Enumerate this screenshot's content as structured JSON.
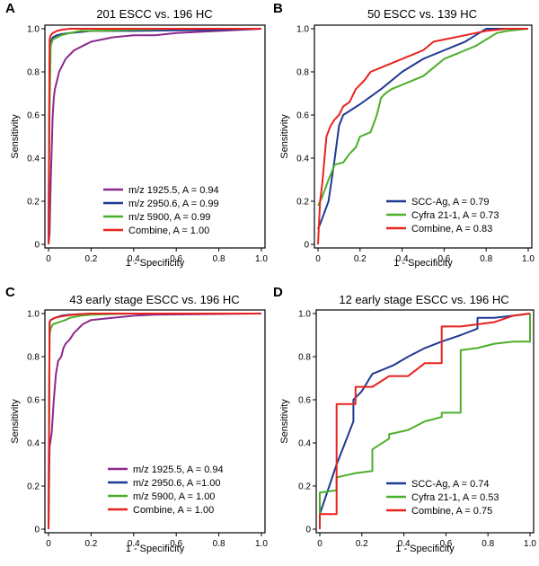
{
  "chart_data": [
    {
      "type": "line",
      "panel": "A",
      "title": "201 ESCC vs. 196 HC",
      "xlabel": "1 - Specificity",
      "ylabel": "Sensitivity",
      "xlim": [
        0,
        1
      ],
      "ylim": [
        0,
        1
      ],
      "xticks": [
        "0",
        "0.2",
        "0.4",
        "0.6",
        "0.8",
        "1.0"
      ],
      "yticks": [
        "0",
        "0.2",
        "0.4",
        "0.6",
        "0.8",
        "1.0"
      ],
      "legend_position": "bottom-right",
      "series": [
        {
          "name": "m/z 1925.5, A = 0.94",
          "color": "#8b2a8e",
          "x": [
            0,
            0.005,
            0.01,
            0.015,
            0.02,
            0.025,
            0.03,
            0.04,
            0.05,
            0.06,
            0.07,
            0.08,
            0.1,
            0.12,
            0.14,
            0.16,
            0.18,
            0.2,
            0.25,
            0.3,
            0.4,
            0.5,
            0.6,
            0.8,
            1.0
          ],
          "y": [
            0,
            0.05,
            0.28,
            0.45,
            0.6,
            0.68,
            0.72,
            0.76,
            0.8,
            0.82,
            0.84,
            0.86,
            0.88,
            0.9,
            0.91,
            0.92,
            0.93,
            0.94,
            0.95,
            0.96,
            0.97,
            0.97,
            0.98,
            0.99,
            1.0
          ]
        },
        {
          "name": "m/z 2950.6, A = 0.99",
          "color": "#1f3a93",
          "x": [
            0,
            0.005,
            0.01,
            0.02,
            0.04,
            0.06,
            0.1,
            0.15,
            0.2,
            0.4,
            0.6,
            0.8,
            1.0
          ],
          "y": [
            0,
            0.85,
            0.94,
            0.96,
            0.97,
            0.975,
            0.98,
            0.985,
            0.99,
            0.99,
            0.993,
            0.995,
            1.0
          ]
        },
        {
          "name": "m/z 5900, A = 0.99",
          "color": "#4caf2a",
          "x": [
            0,
            0.005,
            0.01,
            0.02,
            0.04,
            0.06,
            0.08,
            0.1,
            0.15,
            0.2,
            0.4,
            0.6,
            1.0
          ],
          "y": [
            0,
            0.62,
            0.92,
            0.95,
            0.96,
            0.97,
            0.975,
            0.98,
            0.99,
            0.99,
            0.995,
            1.0,
            1.0
          ]
        },
        {
          "name": "Combine, A = 1.00",
          "color": "#e8231f",
          "x": [
            0,
            0.005,
            0.01,
            0.015,
            0.02,
            0.04,
            0.06,
            0.1,
            0.2,
            0.4,
            0.6,
            1.0
          ],
          "y": [
            0,
            0.95,
            0.97,
            0.975,
            0.98,
            0.99,
            0.995,
            1.0,
            1.0,
            1.0,
            1.0,
            1.0
          ]
        }
      ]
    },
    {
      "type": "line",
      "panel": "B",
      "title": "50 ESCC vs. 139 HC",
      "xlabel": "1 - Specificity",
      "ylabel": "Sensitivity",
      "xlim": [
        0,
        1
      ],
      "ylim": [
        0,
        1
      ],
      "xticks": [
        "0",
        "0.2",
        "0.4",
        "0.6",
        "0.8",
        "1.0"
      ],
      "yticks": [
        "0",
        "0.2",
        "0.4",
        "0.6",
        "0.8",
        "1.0"
      ],
      "legend_position": "bottom-right",
      "series": [
        {
          "name": "SCC-Ag, A = 0.79",
          "color": "#1f3a93",
          "x": [
            0,
            0.02,
            0.05,
            0.08,
            0.1,
            0.12,
            0.2,
            0.3,
            0.4,
            0.5,
            0.6,
            0.7,
            0.75,
            0.8,
            0.9,
            1.0
          ],
          "y": [
            0.07,
            0.12,
            0.2,
            0.4,
            0.55,
            0.6,
            0.65,
            0.72,
            0.8,
            0.86,
            0.9,
            0.94,
            0.97,
            1.0,
            1.0,
            1.0
          ]
        },
        {
          "name": "Cyfra 21-1, A = 0.73",
          "color": "#4caf2a",
          "x": [
            0,
            0.02,
            0.05,
            0.08,
            0.12,
            0.15,
            0.18,
            0.2,
            0.25,
            0.28,
            0.3,
            0.32,
            0.35,
            0.4,
            0.45,
            0.5,
            0.55,
            0.6,
            0.65,
            0.7,
            0.75,
            0.8,
            0.85,
            0.9,
            1.0
          ],
          "y": [
            0.18,
            0.22,
            0.3,
            0.37,
            0.38,
            0.42,
            0.45,
            0.5,
            0.52,
            0.6,
            0.68,
            0.7,
            0.72,
            0.74,
            0.76,
            0.78,
            0.82,
            0.86,
            0.88,
            0.9,
            0.92,
            0.95,
            0.98,
            0.99,
            1.0
          ]
        },
        {
          "name": "Combine, A = 0.83",
          "color": "#e8231f",
          "x": [
            0,
            0.01,
            0.02,
            0.04,
            0.06,
            0.08,
            0.1,
            0.12,
            0.15,
            0.18,
            0.22,
            0.25,
            0.3,
            0.35,
            0.4,
            0.45,
            0.5,
            0.55,
            0.6,
            0.65,
            0.7,
            0.75,
            0.8,
            0.9,
            1.0
          ],
          "y": [
            0,
            0.2,
            0.28,
            0.5,
            0.55,
            0.58,
            0.6,
            0.64,
            0.66,
            0.72,
            0.76,
            0.8,
            0.82,
            0.84,
            0.86,
            0.88,
            0.9,
            0.94,
            0.95,
            0.96,
            0.97,
            0.98,
            0.99,
            1.0,
            1.0
          ]
        }
      ]
    },
    {
      "type": "line",
      "panel": "C",
      "title": "43 early stage ESCC vs. 196 HC",
      "xlabel": "1 - Specificity",
      "ylabel": "Sensitivity",
      "xlim": [
        0,
        1
      ],
      "ylim": [
        0,
        1
      ],
      "xticks": [
        "0",
        "0.2",
        "0.4",
        "0.6",
        "0.8",
        "1.0"
      ],
      "yticks": [
        "0",
        "0.2",
        "0.4",
        "0.6",
        "0.8",
        "1.0"
      ],
      "legend_position": "bottom-right",
      "series": [
        {
          "name": "m/z 1925.5, A = 0.94",
          "color": "#8b2a8e",
          "x": [
            0,
            0.005,
            0.015,
            0.025,
            0.035,
            0.045,
            0.06,
            0.07,
            0.08,
            0.1,
            0.12,
            0.14,
            0.16,
            0.2,
            0.3,
            0.4,
            0.5,
            1.0
          ],
          "y": [
            0,
            0.38,
            0.45,
            0.6,
            0.72,
            0.78,
            0.8,
            0.84,
            0.86,
            0.88,
            0.91,
            0.93,
            0.95,
            0.97,
            0.98,
            0.99,
            0.995,
            1.0
          ]
        },
        {
          "name": "m/z 2950.6, A =1.00",
          "color": "#1f3a93",
          "x": [
            0,
            0.005,
            0.01,
            0.03,
            0.06,
            0.1,
            0.2,
            0.4,
            1.0
          ],
          "y": [
            0,
            0.96,
            0.97,
            0.98,
            0.99,
            0.995,
            1.0,
            1.0,
            1.0
          ]
        },
        {
          "name": "m/z 5900, A = 1.00",
          "color": "#4caf2a",
          "x": [
            0,
            0.005,
            0.01,
            0.02,
            0.05,
            0.08,
            0.1,
            0.15,
            0.2,
            0.4,
            1.0
          ],
          "y": [
            0,
            0.9,
            0.93,
            0.95,
            0.96,
            0.97,
            0.98,
            0.99,
            0.995,
            1.0,
            1.0
          ]
        },
        {
          "name": "Combine, A = 1.00",
          "color": "#e8231f",
          "x": [
            0,
            0.005,
            0.01,
            0.03,
            0.05,
            0.08,
            0.12,
            0.2,
            0.4,
            1.0
          ],
          "y": [
            0,
            0.96,
            0.97,
            0.98,
            0.985,
            0.99,
            0.995,
            1.0,
            1.0,
            1.0
          ]
        }
      ]
    },
    {
      "type": "line",
      "panel": "D",
      "title": "12 early stage ESCC vs. 196 HC",
      "xlabel": "1 - Specificity",
      "ylabel": "Sensitivity",
      "xlim": [
        0,
        1
      ],
      "ylim": [
        0,
        1
      ],
      "xticks": [
        "0",
        "0.2",
        "0.4",
        "0.6",
        "0.8",
        "1.0"
      ],
      "yticks": [
        "0",
        "0.2",
        "0.4",
        "0.6",
        "0.8",
        "1.0"
      ],
      "legend_position": "bottom-right",
      "series": [
        {
          "name": "SCC-Ag, A = 0.74",
          "color": "#1f3a93",
          "x": [
            0,
            0.08,
            0.16,
            0.16,
            0.2,
            0.25,
            0.3,
            0.35,
            0.42,
            0.5,
            0.58,
            0.67,
            0.75,
            0.75,
            0.83,
            0.92,
            1.0
          ],
          "y": [
            0.07,
            0.3,
            0.5,
            0.6,
            0.64,
            0.72,
            0.74,
            0.76,
            0.8,
            0.84,
            0.87,
            0.9,
            0.93,
            0.98,
            0.98,
            0.99,
            1.0
          ]
        },
        {
          "name": "Cyfra 21-1, A = 0.53",
          "color": "#4caf2a",
          "x": [
            0,
            0.0,
            0.08,
            0.08,
            0.17,
            0.25,
            0.25,
            0.33,
            0.33,
            0.42,
            0.5,
            0.58,
            0.58,
            0.67,
            0.67,
            0.75,
            0.83,
            0.92,
            1.0,
            1.0
          ],
          "y": [
            0,
            0.17,
            0.18,
            0.24,
            0.26,
            0.27,
            0.37,
            0.42,
            0.44,
            0.46,
            0.5,
            0.52,
            0.54,
            0.54,
            0.83,
            0.84,
            0.86,
            0.87,
            0.87,
            1.0
          ]
        },
        {
          "name": "Combine, A = 0.75",
          "color": "#e8231f",
          "x": [
            0,
            0.0,
            0.08,
            0.08,
            0.17,
            0.17,
            0.25,
            0.33,
            0.42,
            0.5,
            0.58,
            0.58,
            0.67,
            0.75,
            0.83,
            0.92,
            1.0
          ],
          "y": [
            0,
            0.07,
            0.07,
            0.58,
            0.58,
            0.66,
            0.66,
            0.71,
            0.71,
            0.77,
            0.77,
            0.94,
            0.94,
            0.95,
            0.96,
            0.99,
            1.0
          ]
        }
      ]
    }
  ]
}
